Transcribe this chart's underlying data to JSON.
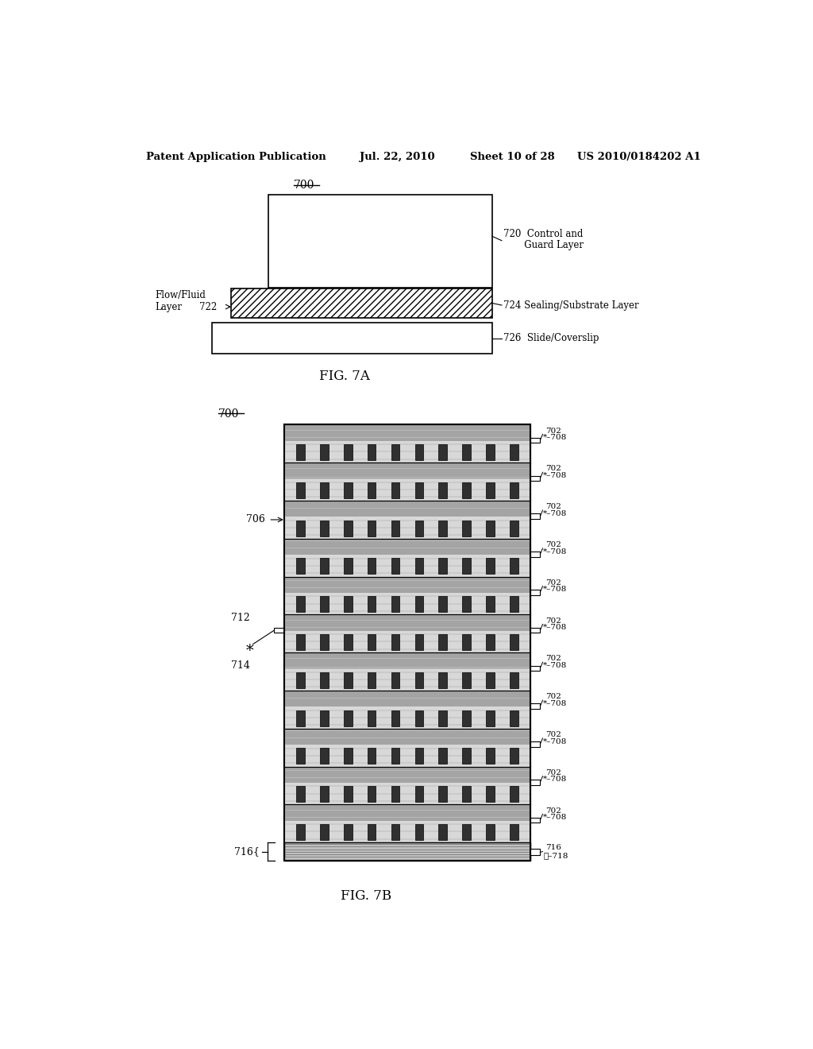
{
  "bg_color": "#ffffff",
  "header_text": "Patent Application Publication",
  "header_date": "Jul. 22, 2010",
  "header_sheet": "Sheet 10 of 28",
  "header_patent": "US 2010/0184202 A1",
  "fig7a_label": "FIG. 7A",
  "fig7b_label": "FIG. 7B",
  "n_rows": 11,
  "n_teeth": 10
}
